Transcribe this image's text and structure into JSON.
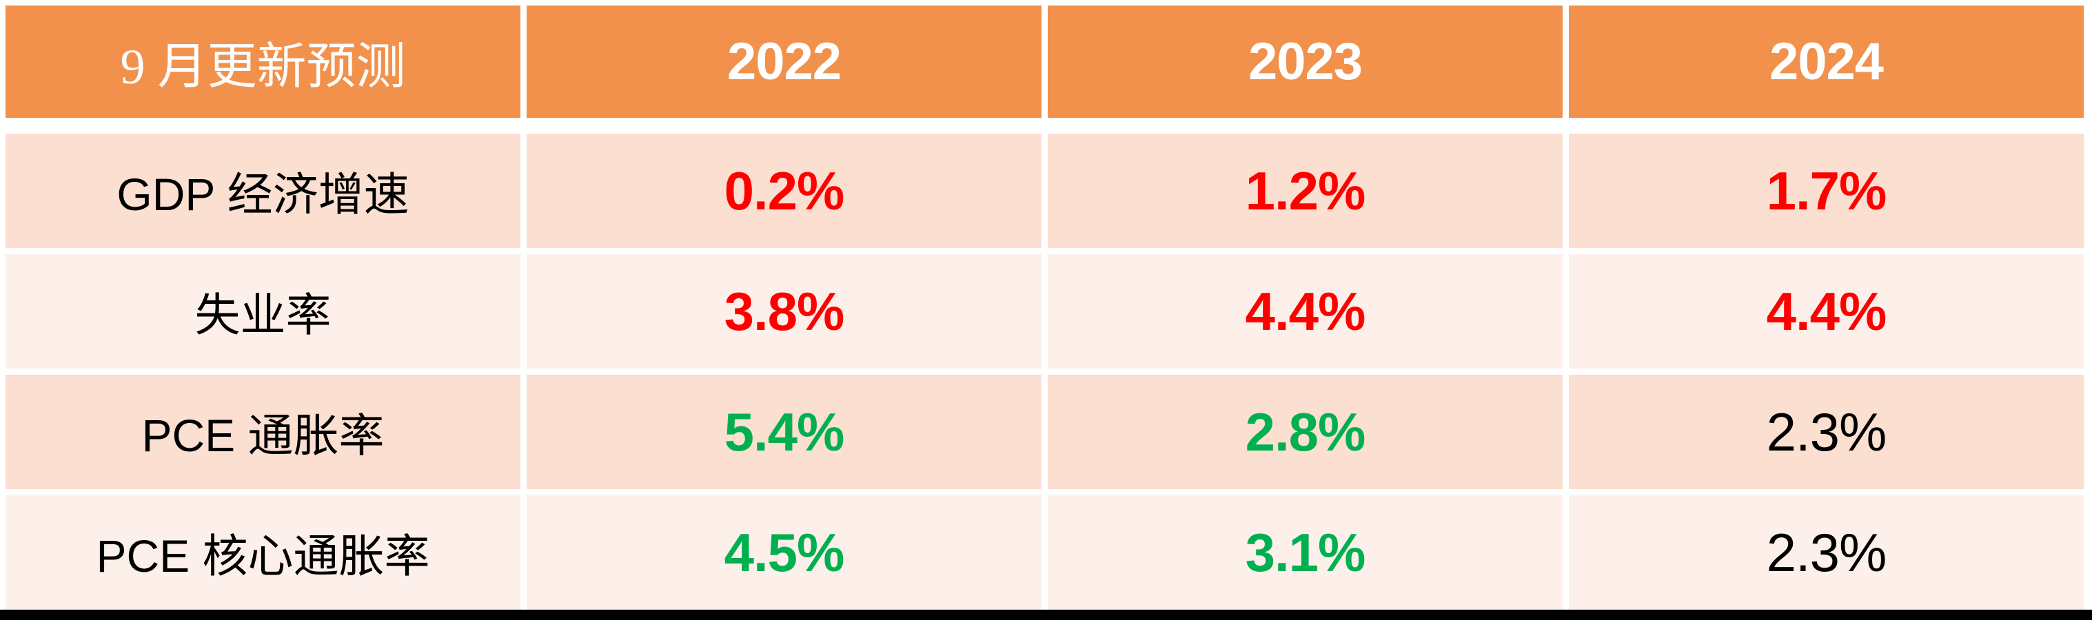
{
  "colors": {
    "page_bg": "#FFFFFF",
    "header_bg": "#F2914C",
    "header_text": "#FFFFFF",
    "band_dark": "#FBDFD0",
    "band_light": "#FDF0EA",
    "label_text": "#000000",
    "value_red": "#FF0000",
    "value_green": "#00B050",
    "value_black": "#000000",
    "bottom_bar": "#000000"
  },
  "chart_data": {
    "type": "table",
    "title": "9 月更新预测",
    "columns": [
      "9 月更新预测",
      "2022",
      "2023",
      "2024"
    ],
    "rows": [
      {
        "label": "GDP 经济增速",
        "values": [
          "0.2%",
          "1.2%",
          "1.7%"
        ],
        "value_colors": [
          "#FF0000",
          "#FF0000",
          "#FF0000"
        ],
        "value_weights": [
          "bold",
          "bold",
          "bold"
        ]
      },
      {
        "label": "失业率",
        "values": [
          "3.8%",
          "4.4%",
          "4.4%"
        ],
        "value_colors": [
          "#FF0000",
          "#FF0000",
          "#FF0000"
        ],
        "value_weights": [
          "bold",
          "bold",
          "bold"
        ]
      },
      {
        "label": "PCE 通胀率",
        "values": [
          "5.4%",
          "2.8%",
          "2.3%"
        ],
        "value_colors": [
          "#00B050",
          "#00B050",
          "#000000"
        ],
        "value_weights": [
          "bold",
          "bold",
          "normal"
        ]
      },
      {
        "label": "PCE 核心通胀率",
        "values": [
          "4.5%",
          "3.1%",
          "2.3%"
        ],
        "value_colors": [
          "#00B050",
          "#00B050",
          "#000000"
        ],
        "value_weights": [
          "bold",
          "bold",
          "normal"
        ]
      }
    ]
  }
}
